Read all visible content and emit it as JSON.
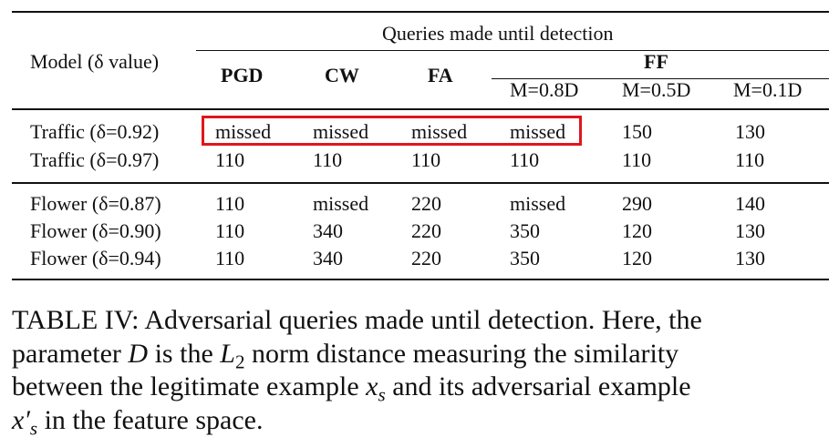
{
  "table": {
    "header": {
      "model_col": "Model (δ value)",
      "group_title": "Queries made until detection",
      "methods": [
        "PGD",
        "CW",
        "FA"
      ],
      "ff_label": "FF",
      "ff_subcols": [
        "M=0.8D",
        "M=0.5D",
        "M=0.1D"
      ]
    },
    "rows": [
      {
        "model": "Traffic (δ=0.92)",
        "values": [
          "missed",
          "missed",
          "missed",
          "missed",
          "150",
          "130"
        ]
      },
      {
        "model": "Traffic (δ=0.97)",
        "values": [
          "110",
          "110",
          "110",
          "110",
          "110",
          "110"
        ]
      },
      {
        "model": "Flower (δ=0.87)",
        "values": [
          "110",
          "missed",
          "220",
          "missed",
          "290",
          "140"
        ]
      },
      {
        "model": "Flower (δ=0.90)",
        "values": [
          "110",
          "340",
          "220",
          "350",
          "120",
          "130"
        ]
      },
      {
        "model": "Flower (δ=0.94)",
        "values": [
          "110",
          "340",
          "220",
          "350",
          "120",
          "130"
        ]
      }
    ],
    "highlight_color": "#e0161b"
  },
  "caption": {
    "line1": "TABLE IV: Adversarial queries made until detection. Here, the",
    "line2_a": "parameter ",
    "line2_D": "D",
    "line2_b": " is the ",
    "line2_L": "L",
    "line2_sub": "2",
    "line2_c": " norm distance measuring the similarity",
    "line3_a": "between the legitimate example ",
    "line3_x": "x",
    "line3_sub": "s",
    "line3_b": " and its adversarial example",
    "line4_x": "x′",
    "line4_sub": "s",
    "line4_b": " in the feature space."
  }
}
